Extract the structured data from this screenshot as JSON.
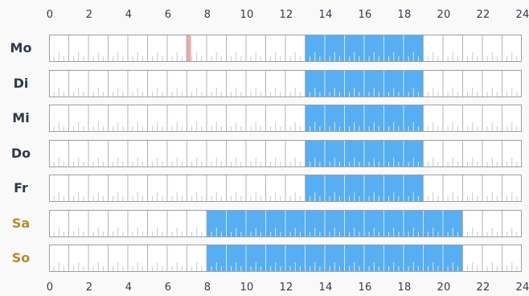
{
  "hours_top": [
    "0",
    "2",
    "4",
    "6",
    "8",
    "10",
    "12",
    "14",
    "16",
    "18",
    "20",
    "22",
    "24"
  ],
  "hours_bottom": [
    "0",
    "2",
    "4",
    "6",
    "8",
    "10",
    "12",
    "14",
    "16",
    "18",
    "20",
    "22",
    "24"
  ],
  "days": [
    {
      "label": "Mo",
      "weekend": false,
      "active": [
        13,
        19
      ],
      "marker": 7
    },
    {
      "label": "Di",
      "weekend": false,
      "active": [
        13,
        19
      ]
    },
    {
      "label": "Mi",
      "weekend": false,
      "active": [
        13,
        19
      ]
    },
    {
      "label": "Do",
      "weekend": false,
      "active": [
        13,
        19
      ]
    },
    {
      "label": "Fr",
      "weekend": false,
      "active": [
        13,
        19
      ]
    },
    {
      "label": "Sa",
      "weekend": true,
      "active": [
        8,
        21
      ]
    },
    {
      "label": "So",
      "weekend": true,
      "active": [
        8,
        21
      ]
    }
  ],
  "colors": {
    "active": "#57aef2",
    "marker": "#f2a7a9",
    "weekday_label": "#2e3848",
    "weekend_label": "#b8892e"
  }
}
